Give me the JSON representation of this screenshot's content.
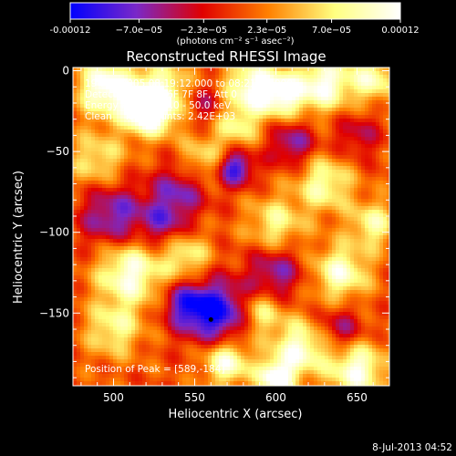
{
  "chart_data": {
    "type": "heatmap",
    "title": "Reconstructed RHESSI Image",
    "xlabel": "Heliocentric X (arcsec)",
    "ylabel": "Heliocentric Y (arcsec)",
    "xlim": [
      475,
      670
    ],
    "ylim": [
      -195,
      2
    ],
    "x_ticks": [
      500,
      550,
      600,
      650
    ],
    "y_ticks": [
      0,
      -50,
      -100,
      -150
    ],
    "colorbar": {
      "min": -0.00012,
      "max": 0.00012,
      "tick_values": [
        -0.00012,
        -7e-05,
        -2.3e-05,
        2.3e-05,
        7e-05,
        0.00012
      ],
      "tick_labels": [
        "-0.00012",
        "−7.0e−05",
        "−2.3e−05",
        "2.3e−05",
        "7.0e−05",
        "0.00012"
      ],
      "unit_label": "(photons cm⁻² s⁻¹ asec⁻²)",
      "colors": [
        "#0000ff",
        "#7a28c8",
        "#e00000",
        "#ff8000",
        "#ffff80",
        "#ffffff"
      ]
    },
    "annotations": [
      "19-Feb-2005 08:19:12.000 to 08:21:56.000",
      "Detectors: 4F 5F 6F 7F 8F, Att 0",
      "Energy Range: 25.0 - 50.0 keV",
      "Clean    Total counts: 2.42E+03"
    ],
    "peak_text": "Position of Peak = [589,-184]",
    "peak": [
      589,
      -184
    ],
    "marker": [
      560,
      -154
    ],
    "features": [
      {
        "x": 495,
        "y": -10,
        "v": 1.0,
        "s": 12
      },
      {
        "x": 530,
        "y": -15,
        "v": 0.8,
        "s": 14
      },
      {
        "x": 520,
        "y": -25,
        "v": 1.0,
        "s": 10
      },
      {
        "x": 585,
        "y": -10,
        "v": 0.9,
        "s": 12
      },
      {
        "x": 605,
        "y": -15,
        "v": 0.8,
        "s": 10
      },
      {
        "x": 630,
        "y": -8,
        "v": 0.9,
        "s": 12
      },
      {
        "x": 660,
        "y": -5,
        "v": 0.7,
        "s": 10
      },
      {
        "x": 575,
        "y": -35,
        "v": 0.55,
        "s": 10
      },
      {
        "x": 490,
        "y": -55,
        "v": 0.55,
        "s": 12
      },
      {
        "x": 555,
        "y": -55,
        "v": 0.5,
        "s": 10
      },
      {
        "x": 630,
        "y": -70,
        "v": 0.7,
        "s": 12
      },
      {
        "x": 600,
        "y": -95,
        "v": 0.6,
        "s": 12
      },
      {
        "x": 660,
        "y": -95,
        "v": 0.65,
        "s": 10
      },
      {
        "x": 510,
        "y": -125,
        "v": 0.9,
        "s": 14
      },
      {
        "x": 545,
        "y": -115,
        "v": 0.6,
        "s": 10
      },
      {
        "x": 640,
        "y": -125,
        "v": 0.8,
        "s": 12
      },
      {
        "x": 500,
        "y": -160,
        "v": 0.6,
        "s": 12
      },
      {
        "x": 590,
        "y": -150,
        "v": 0.65,
        "s": 10
      },
      {
        "x": 570,
        "y": -180,
        "v": 0.9,
        "s": 10
      },
      {
        "x": 615,
        "y": -172,
        "v": 0.85,
        "s": 12
      },
      {
        "x": 650,
        "y": -185,
        "v": 0.9,
        "s": 12
      },
      {
        "x": 600,
        "y": -190,
        "v": 1.0,
        "s": 8
      },
      {
        "x": 555,
        "y": -20,
        "v": -0.5,
        "s": 10
      },
      {
        "x": 540,
        "y": -75,
        "v": -0.6,
        "s": 12
      },
      {
        "x": 575,
        "y": -60,
        "v": -0.9,
        "s": 8
      },
      {
        "x": 500,
        "y": -90,
        "v": -0.7,
        "s": 14
      },
      {
        "x": 530,
        "y": -95,
        "v": -0.5,
        "s": 10
      },
      {
        "x": 600,
        "y": -125,
        "v": -0.6,
        "s": 12
      },
      {
        "x": 565,
        "y": -150,
        "v": -1.0,
        "s": 14
      },
      {
        "x": 545,
        "y": -145,
        "v": -0.7,
        "s": 10
      },
      {
        "x": 640,
        "y": -160,
        "v": -0.5,
        "s": 10
      },
      {
        "x": 610,
        "y": -45,
        "v": -0.6,
        "s": 10
      },
      {
        "x": 650,
        "y": -40,
        "v": -0.4,
        "s": 10
      }
    ]
  },
  "footer": {
    "date": "8-Jul-2013 04:52"
  }
}
